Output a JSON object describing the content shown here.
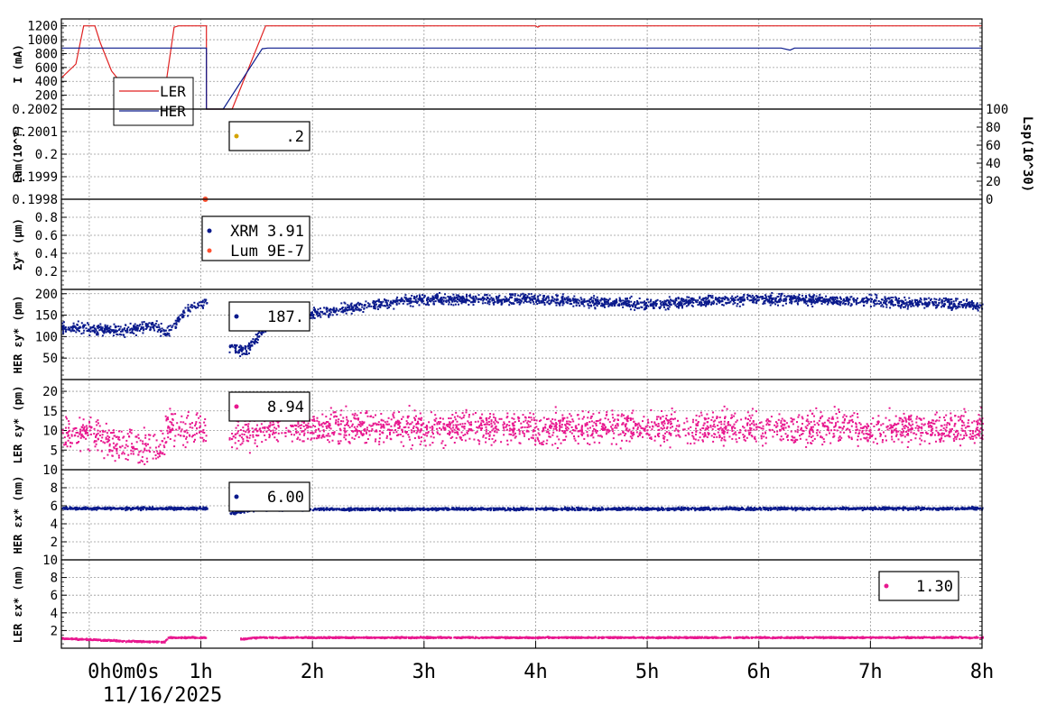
{
  "time_axis": {
    "ticks": [
      {
        "value": 0,
        "label": "0h0m0s"
      },
      {
        "value": 1,
        "label": "1h"
      },
      {
        "value": 2,
        "label": "2h"
      },
      {
        "value": 3,
        "label": "3h"
      },
      {
        "value": 4,
        "label": "4h"
      },
      {
        "value": 5,
        "label": "5h"
      },
      {
        "value": 6,
        "label": "6h"
      },
      {
        "value": 7,
        "label": "7h"
      },
      {
        "value": 8,
        "label": "8h"
      }
    ],
    "date": "11/16/2025"
  },
  "colors": {
    "ler": "#e8188f",
    "her": "#0a1a8c",
    "red": "#e02020",
    "lum_marker": "#d4a300",
    "lum_dot": "#ff5030",
    "grid": "#999999"
  },
  "chart_data": [
    {
      "type": "line",
      "ylabel": "I (mA)",
      "ylim": [
        0,
        1300
      ],
      "yticks": [
        200,
        400,
        600,
        800,
        1000,
        1200
      ],
      "xlim": [
        -0.25,
        8.0
      ],
      "series": [
        {
          "name": "LER",
          "color": "red",
          "points": [
            [
              -0.25,
              450
            ],
            [
              -0.12,
              650
            ],
            [
              -0.05,
              1200
            ],
            [
              0.05,
              1200
            ],
            [
              0.1,
              950
            ],
            [
              0.2,
              550
            ],
            [
              0.3,
              350
            ],
            [
              0.4,
              250
            ],
            [
              0.5,
              200
            ],
            [
              0.6,
              180
            ],
            [
              0.67,
              170
            ],
            [
              0.76,
              1180
            ],
            [
              0.8,
              1200
            ],
            [
              1.05,
              1200
            ],
            [
              1.05,
              0
            ],
            [
              1.28,
              0
            ],
            [
              1.58,
              1200
            ],
            [
              1.65,
              1200
            ],
            [
              4.0,
              1200
            ],
            [
              4.02,
              1180
            ],
            [
              4.04,
              1200
            ],
            [
              8.0,
              1200
            ]
          ]
        },
        {
          "name": "HER",
          "color": "her",
          "points": [
            [
              -0.25,
              880
            ],
            [
              1.05,
              880
            ],
            [
              1.05,
              0
            ],
            [
              1.2,
              0
            ],
            [
              1.55,
              870
            ],
            [
              1.6,
              880
            ],
            [
              6.2,
              880
            ],
            [
              6.28,
              850
            ],
            [
              6.32,
              880
            ],
            [
              8.0,
              880
            ]
          ]
        }
      ]
    },
    {
      "type": "scatter",
      "ylabel": "Lum(10^?)",
      "ylim": [
        0.1998,
        0.2002
      ],
      "yticks": [
        {
          "value": 0.1998,
          "label": "0.1998"
        },
        {
          "value": 0.1999,
          "label": "0.1999"
        },
        {
          "value": 0.2,
          "label": "0.2"
        },
        {
          "value": 0.2001,
          "label": "0.2001"
        },
        {
          "value": 0.2002,
          "label": "0.2002"
        }
      ],
      "right_axis": {
        "label": "Lsp(10^30)",
        "ylim": [
          0,
          100
        ],
        "ticks": [
          0,
          20,
          40,
          60,
          80,
          100
        ]
      },
      "series": [
        {
          "name": "",
          "legend_value": ".2",
          "color": "lum_marker",
          "points": []
        }
      ]
    },
    {
      "type": "scatter",
      "ylabel": "Σy* (μm)",
      "ylim": [
        0,
        1.0
      ],
      "yticks": [
        0.2,
        0.4,
        0.6,
        0.8
      ],
      "series": [
        {
          "name": "XRM",
          "legend_value": "3.91",
          "color": "her",
          "points": []
        },
        {
          "name": "Lum",
          "legend_value": "9E-7",
          "color": "lum_dot",
          "points": [
            [
              1.04,
              1.0
            ]
          ]
        }
      ]
    },
    {
      "type": "scatter",
      "ylabel": "HER εy* (pm)",
      "ylim": [
        0,
        210
      ],
      "yticks": [
        50,
        100,
        150,
        200
      ],
      "series": [
        {
          "name": "",
          "legend_value": "187.",
          "color": "her",
          "profile": [
            [
              -0.25,
              125
            ],
            [
              0.3,
              115
            ],
            [
              0.55,
              128
            ],
            [
              0.7,
              110
            ],
            [
              0.85,
              160
            ],
            [
              1.05,
              185
            ],
            [
              1.05,
              null
            ],
            [
              1.25,
              null
            ],
            [
              1.25,
              75
            ],
            [
              1.4,
              70
            ],
            [
              1.55,
              120
            ],
            [
              2.0,
              155
            ],
            [
              2.5,
              175
            ],
            [
              3.0,
              190
            ],
            [
              4.0,
              188
            ],
            [
              5.0,
              178
            ],
            [
              6.0,
              190
            ],
            [
              7.0,
              185
            ],
            [
              8.0,
              175
            ]
          ],
          "spread": 12
        }
      ]
    },
    {
      "type": "scatter",
      "ylabel": "LER εy* (pm)",
      "ylim": [
        0,
        23
      ],
      "yticks": [
        5,
        10,
        15,
        20
      ],
      "series": [
        {
          "name": "",
          "legend_value": "8.94",
          "color": "ler",
          "profile": [
            [
              -0.25,
              9
            ],
            [
              0.0,
              10
            ],
            [
              0.2,
              7
            ],
            [
              0.67,
              6
            ],
            [
              0.68,
              11
            ],
            [
              1.05,
              10
            ],
            [
              1.05,
              null
            ],
            [
              1.25,
              null
            ],
            [
              1.25,
              8
            ],
            [
              1.55,
              11
            ],
            [
              8.0,
              11
            ]
          ],
          "spread": 4
        }
      ]
    },
    {
      "type": "scatter",
      "ylabel": "HER εx* (nm)",
      "ylim": [
        0,
        10
      ],
      "yticks": [
        2,
        4,
        6,
        8,
        10
      ],
      "series": [
        {
          "name": "",
          "legend_value": "6.00",
          "color": "her",
          "profile": [
            [
              -0.25,
              5.8
            ],
            [
              1.05,
              5.8
            ],
            [
              1.05,
              null
            ],
            [
              1.25,
              null
            ],
            [
              1.25,
              5.2
            ],
            [
              1.5,
              5.7
            ],
            [
              8.0,
              5.8
            ]
          ],
          "spread": 0.15
        }
      ]
    },
    {
      "type": "scatter",
      "ylabel": "LER εx* (nm)",
      "ylim": [
        0,
        10
      ],
      "yticks": [
        2,
        4,
        6,
        8,
        10
      ],
      "series": [
        {
          "name": "",
          "legend_value": "1.30",
          "color": "ler",
          "profile": [
            [
              -0.25,
              1.2
            ],
            [
              0.3,
              0.9
            ],
            [
              0.67,
              0.8
            ],
            [
              0.7,
              1.3
            ],
            [
              1.05,
              1.3
            ],
            [
              1.05,
              null
            ],
            [
              1.35,
              null
            ],
            [
              1.35,
              1.1
            ],
            [
              1.5,
              1.3
            ],
            [
              8.0,
              1.3
            ]
          ],
          "spread": 0.08
        }
      ]
    }
  ]
}
